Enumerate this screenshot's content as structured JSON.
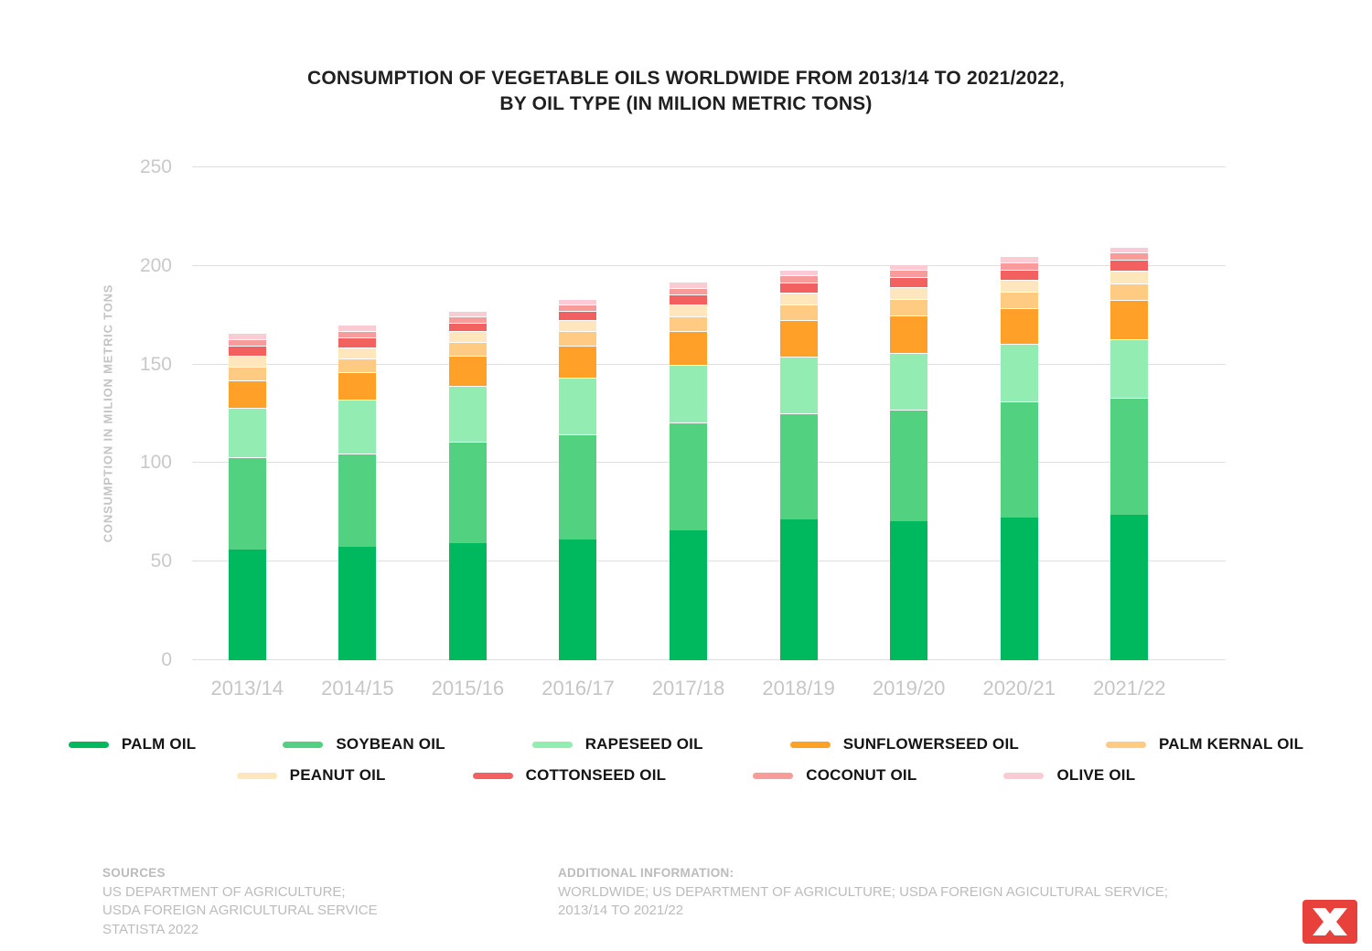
{
  "title": {
    "line1": "CONSUMPTION OF VEGETABLE OILS WORLDWIDE FROM 2013/14 TO 2021/2022,",
    "line2": "BY OIL TYPE (IN MILION METRIC TONS)"
  },
  "chart_data": {
    "type": "bar",
    "stacked": true,
    "title": "CONSUMPTION OF VEGETABLE OILS WORLDWIDE FROM 2013/14 TO 2021/2022, BY OIL TYPE (IN MILION METRIC TONS)",
    "xlabel": "",
    "ylabel": "CONSUMPTION IN MILION METRIC TONS",
    "ylim": [
      0,
      250
    ],
    "yticks": [
      0,
      50,
      100,
      150,
      200,
      250
    ],
    "grid": true,
    "legend_position": "bottom",
    "categories": [
      "2013/14",
      "2014/15",
      "2015/16",
      "2016/17",
      "2017/18",
      "2018/19",
      "2019/20",
      "2020/21",
      "2021/22"
    ],
    "series": [
      {
        "name": "PALM OIL",
        "color": "#00B95F",
        "values": [
          56.3,
          57.3,
          59.4,
          61.2,
          65.9,
          71.5,
          70.4,
          72.3,
          73.8
        ]
      },
      {
        "name": "SOYBEAN OIL",
        "color": "#52D280",
        "values": [
          46.8,
          47.5,
          51.6,
          53.4,
          54.9,
          53.8,
          56.9,
          59.1,
          59.3
        ]
      },
      {
        "name": "RAPESEED OIL",
        "color": "#93EDB2",
        "values": [
          24.9,
          27.4,
          28.2,
          28.8,
          28.9,
          28.9,
          28.4,
          29.1,
          29.5
        ]
      },
      {
        "name": "SUNFLOWERSEED OIL",
        "color": "#FFA028",
        "values": [
          14.1,
          14.0,
          15.2,
          16.1,
          17.1,
          18.3,
          19.4,
          17.9,
          20.0
        ]
      },
      {
        "name": "PALM KERNAL OIL",
        "color": "#FFCB82",
        "values": [
          6.7,
          7.0,
          7.0,
          7.5,
          7.7,
          8.1,
          8.3,
          8.4,
          8.7
        ]
      },
      {
        "name": "PEANUT OIL",
        "color": "#FFE6BC",
        "values": [
          5.6,
          5.5,
          5.4,
          5.7,
          5.9,
          5.8,
          6.0,
          6.3,
          6.5
        ]
      },
      {
        "name": "COTTONSEED OIL",
        "color": "#F26060",
        "values": [
          5.2,
          5.1,
          4.3,
          4.4,
          5.0,
          5.1,
          4.9,
          5.0,
          5.2
        ]
      },
      {
        "name": "COCONUT OIL",
        "color": "#F89B9B",
        "values": [
          3.3,
          3.3,
          3.2,
          3.3,
          3.6,
          3.6,
          3.6,
          3.6,
          3.7
        ]
      },
      {
        "name": "OLIVE OIL",
        "color": "#FACBD2",
        "values": [
          3.0,
          3.1,
          2.9,
          2.8,
          3.0,
          3.1,
          3.2,
          3.2,
          3.2
        ]
      }
    ]
  },
  "footer": {
    "sources_title": "SOURCES",
    "sources_lines": [
      "US DEPARTMENT OF AGRICULTURE;",
      "USDA FOREIGN AGRICULTURAL SERVICE",
      "STATISTA 2022"
    ],
    "additional_title": "ADDITIONAL INFORMATION:",
    "additional_lines": [
      "WORLDWIDE; US DEPARTMENT OF AGRICULTURE; USDA FOREIGN AGICULTURAL SERVICE;",
      "2013/14 TO 2021/22"
    ]
  },
  "logo": {
    "name": "statista-logo",
    "color": "#E8413C"
  }
}
